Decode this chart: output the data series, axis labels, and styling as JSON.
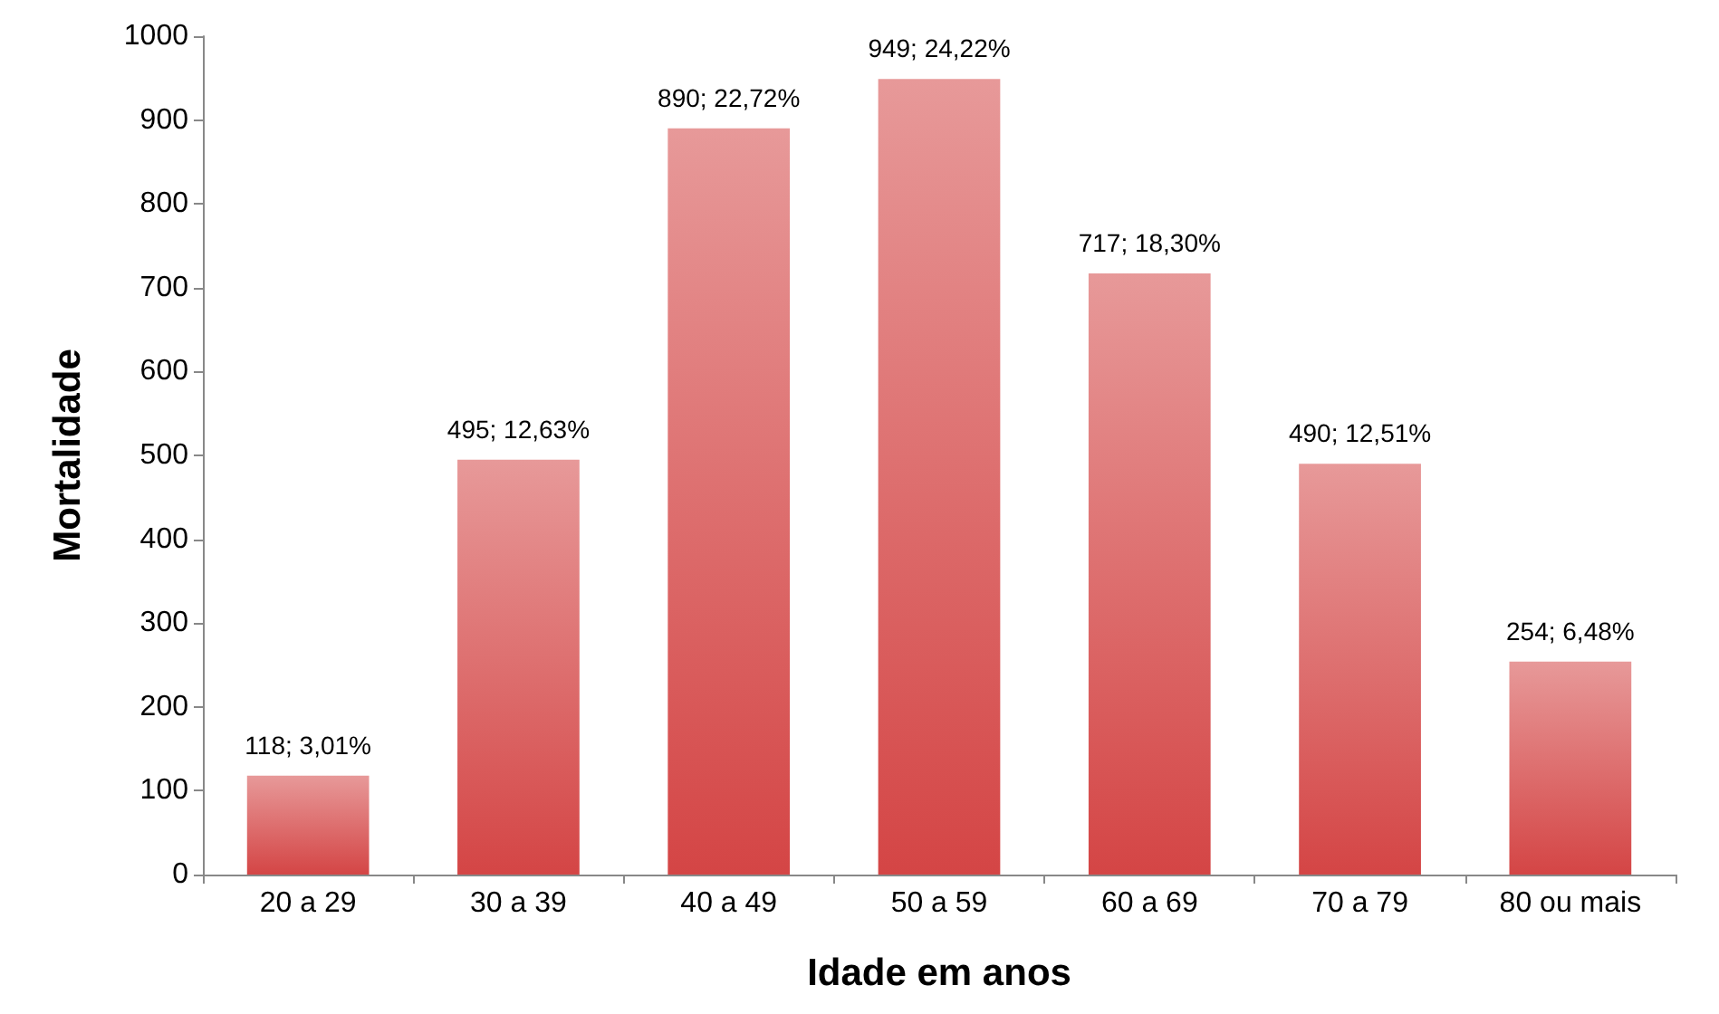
{
  "chart_data": {
    "type": "bar",
    "xlabel": "Idade em anos",
    "ylabel": "Mortalidade",
    "categories": [
      "20 a 29",
      "30 a 39",
      "40 a 49",
      "50 a 59",
      "60 a 69",
      "70 a 79",
      "80 ou mais"
    ],
    "values": [
      118,
      495,
      890,
      949,
      717,
      490,
      254
    ],
    "value_labels": [
      "118; 3,01%",
      "495; 12,63%",
      "890; 22,72%",
      "949; 24,22%",
      "717; 18,30%",
      "490; 12,51%",
      "254; 6,48%"
    ],
    "color": "#d44545",
    "ylim": [
      0,
      1000
    ],
    "yticks": [
      0,
      100,
      200,
      300,
      400,
      500,
      600,
      700,
      800,
      900,
      1000
    ]
  }
}
